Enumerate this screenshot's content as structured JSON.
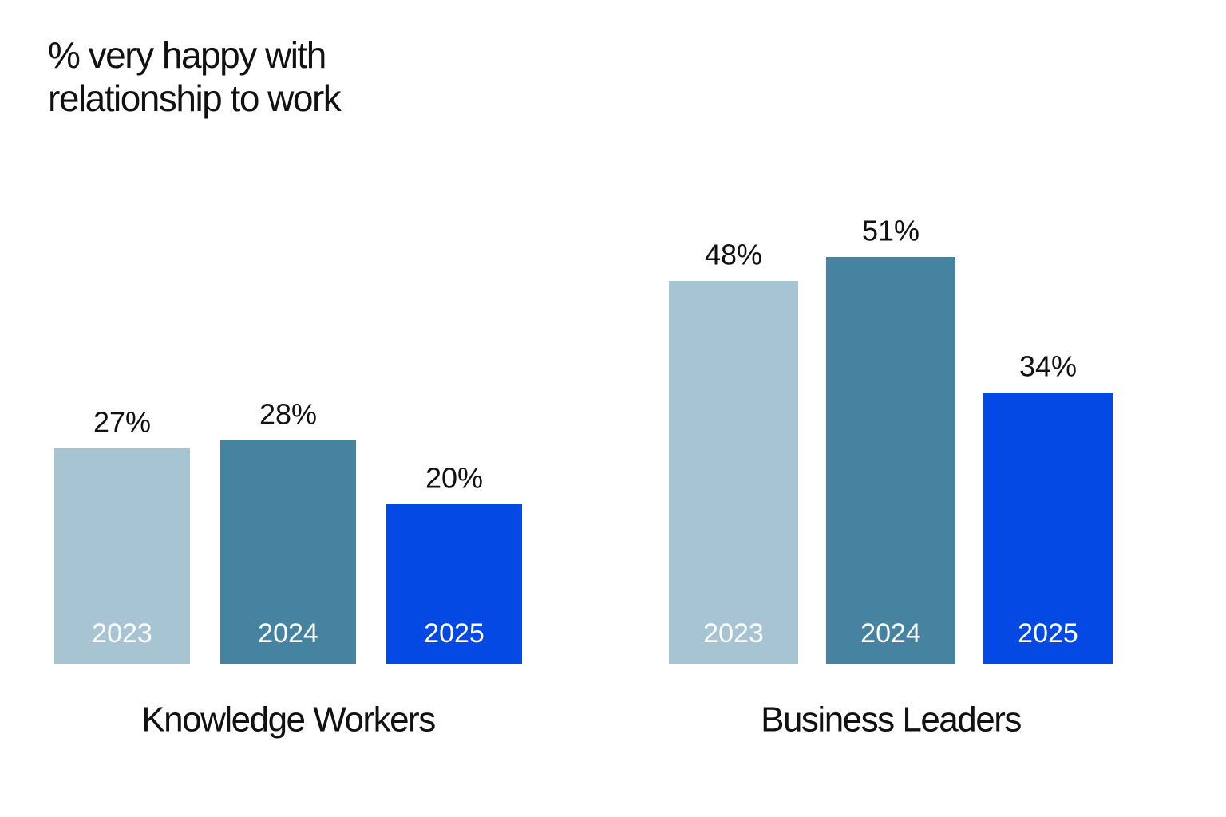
{
  "title": "% very happy with relationship to work",
  "chart_data": [
    {
      "type": "bar",
      "xlabel": "Knowledge Workers",
      "categories": [
        "2023",
        "2024",
        "2025"
      ],
      "values": [
        27,
        28,
        20
      ],
      "value_labels": [
        "27%",
        "28%",
        "20%"
      ],
      "colors": [
        "#a7c4d3",
        "#4683a0",
        "#0449e4"
      ]
    },
    {
      "type": "bar",
      "xlabel": "Business Leaders",
      "categories": [
        "2023",
        "2024",
        "2025"
      ],
      "values": [
        48,
        51,
        34
      ],
      "value_labels": [
        "48%",
        "51%",
        "34%"
      ],
      "colors": [
        "#a7c4d3",
        "#4683a0",
        "#0449e4"
      ]
    }
  ]
}
